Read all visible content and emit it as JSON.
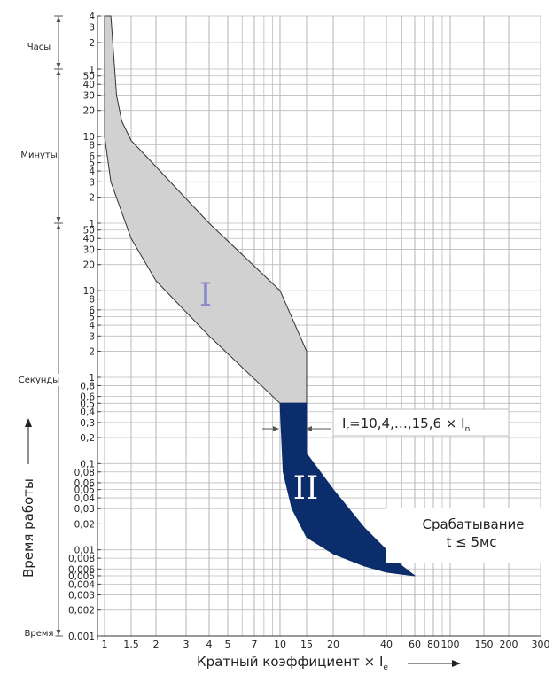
{
  "chart_data": {
    "type": "area",
    "title": "",
    "xlabel": "Кратный коэффициент × I",
    "xlabel_sub": "e",
    "ylabel": "Время работы",
    "x_scale": "log",
    "grid": true,
    "x_ticks": [
      "1",
      "1,5",
      "2",
      "3",
      "4",
      "5",
      "7",
      "10",
      "15",
      "20",
      "40",
      "60",
      "80",
      "100",
      "150",
      "200",
      "300"
    ],
    "y_bands": [
      {
        "name": "Часы",
        "ticks": [
          "4",
          "3",
          "2",
          "1"
        ]
      },
      {
        "name": "Минуты",
        "ticks": [
          "50",
          "40",
          "30",
          "20",
          "10",
          "8",
          "6",
          "5",
          "4",
          "3",
          "2",
          "1"
        ]
      },
      {
        "name": "Секунды",
        "ticks": [
          "50",
          "40",
          "30",
          "20",
          "10",
          "8",
          "6",
          "5",
          "4",
          "3",
          "2",
          "1",
          "0,8",
          "0,6",
          "0,5",
          "0,4",
          "0,3",
          "0,2",
          "0,1",
          "0,08",
          "0,06",
          "0,05",
          "0,04",
          "0,03",
          "0,02",
          "0,01",
          "0,008",
          "0,006",
          "0,005",
          "0,004",
          "0,003",
          "0,002",
          "0,001"
        ]
      },
      {
        "name": "Время",
        "ticks": []
      }
    ],
    "series": [
      {
        "name": "I",
        "color": "#d1d1d1",
        "label_color": "#8888cc",
        "upper": {
          "x": [
            1,
            1.1,
            1.2,
            1.3,
            1.5,
            2,
            4,
            10,
            15
          ],
          "y": [
            14400,
            14400,
            1800,
            900,
            540,
            270,
            60,
            10,
            2
          ]
        },
        "lower": {
          "x": [
            1,
            1.1,
            1.3,
            1.5,
            2,
            4,
            10,
            15
          ],
          "y": [
            600,
            180,
            80,
            40,
            13,
            3,
            0.5,
            0.5
          ]
        }
      },
      {
        "name": "II",
        "color": "#0b2d6b",
        "label_color": "#ffffff",
        "outer": {
          "x": [
            10,
            15,
            15,
            20,
            30,
            40,
            50,
            60
          ],
          "y": [
            0.5,
            0.5,
            0.13,
            0.05,
            0.018,
            0.01,
            0.0065,
            0.005
          ]
        },
        "inner": {
          "x": [
            10,
            10.5,
            12,
            15,
            20,
            30,
            40,
            60
          ],
          "y": [
            0.5,
            0.08,
            0.03,
            0.014,
            0.009,
            0.0065,
            0.0055,
            0.005
          ]
        }
      }
    ],
    "annotations": {
      "setting_main": "I",
      "setting_sub": "r",
      "setting_rest": "=10,4,…,15,6 × I",
      "setting_sub2": "n",
      "trip_line1": "Срабатывание",
      "trip_line2": "t ≤ 5мс"
    }
  }
}
